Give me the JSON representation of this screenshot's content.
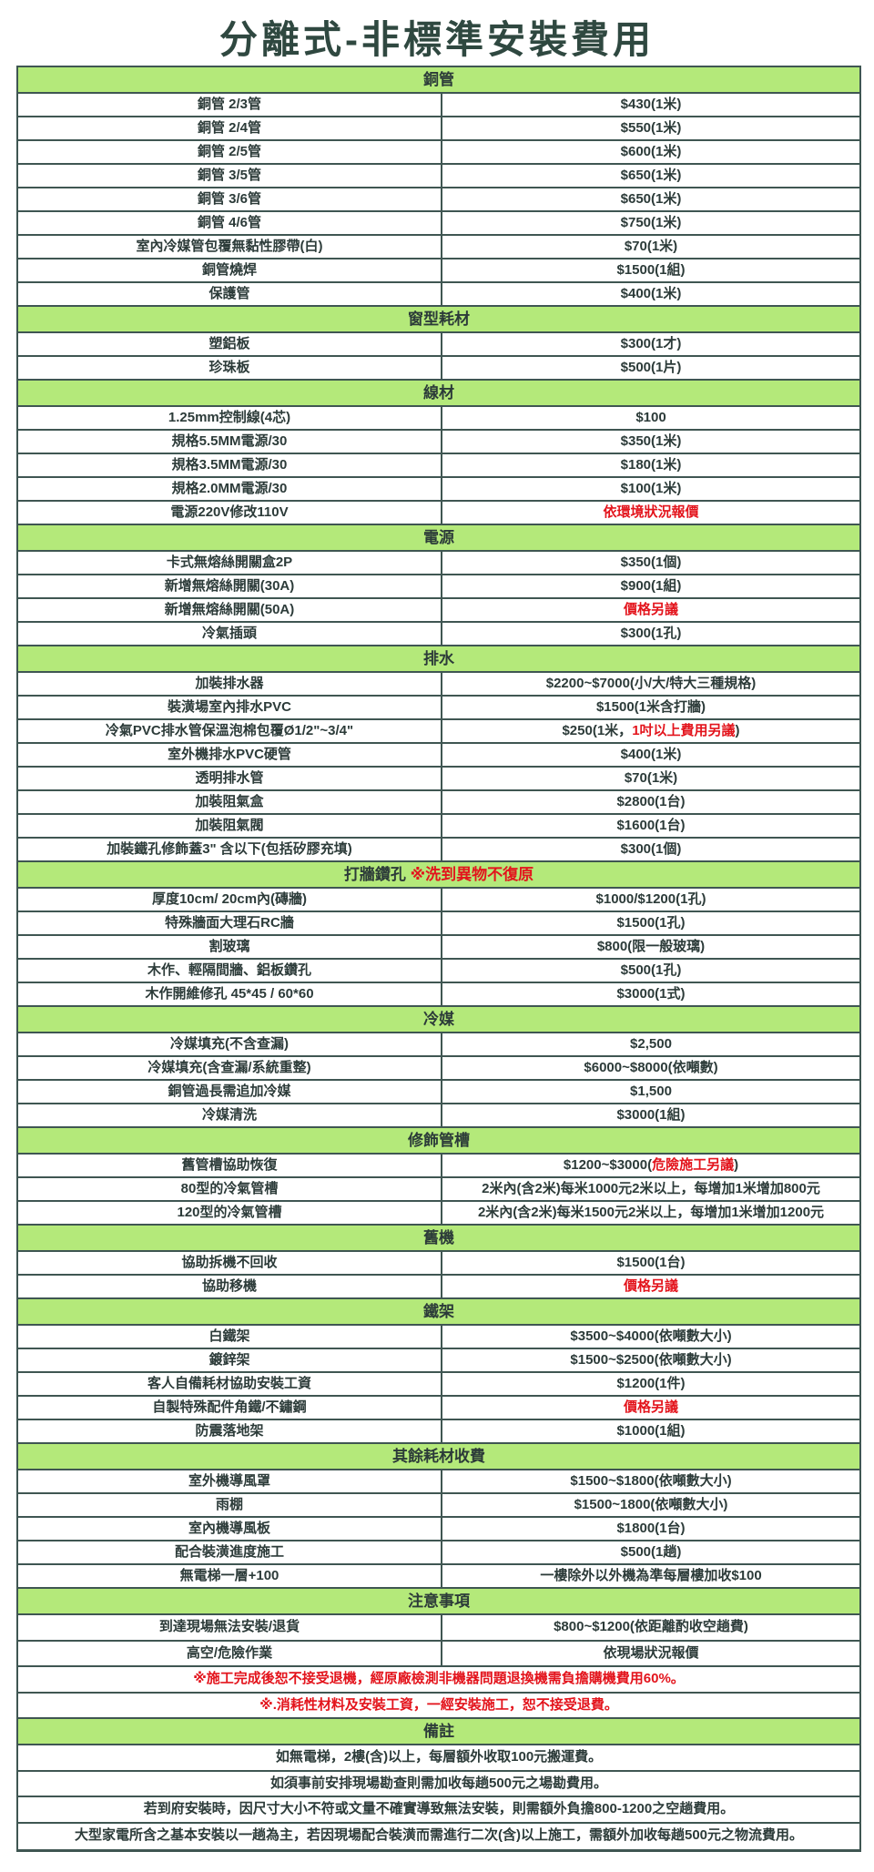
{
  "title": "分離式-非標準安裝費用",
  "colors": {
    "header_bg": "#b4e97a",
    "border": "#3f5652",
    "text": "#2c3b39",
    "highlight_red": "#e3141c"
  },
  "sections": [
    {
      "title": "銅管",
      "rows": [
        {
          "item": "銅管 2/3管",
          "price": [
            {
              "text": "$430(1米)"
            }
          ]
        },
        {
          "item": "銅管 2/4管",
          "price": [
            {
              "text": "$550(1米)"
            }
          ]
        },
        {
          "item": "銅管 2/5管",
          "price": [
            {
              "text": "$600(1米)"
            }
          ]
        },
        {
          "item": "銅管 3/5管",
          "price": [
            {
              "text": "$650(1米)"
            }
          ]
        },
        {
          "item": "銅管 3/6管",
          "price": [
            {
              "text": "$650(1米)"
            }
          ]
        },
        {
          "item": "銅管 4/6管",
          "price": [
            {
              "text": "$750(1米)"
            }
          ]
        },
        {
          "item": "室內冷媒管包覆無黏性膠帶(白)",
          "price": [
            {
              "text": "$70(1米)"
            }
          ]
        },
        {
          "item": "銅管燒焊",
          "price": [
            {
              "text": "$1500(1組)"
            }
          ]
        },
        {
          "item": "保護管",
          "price": [
            {
              "text": "$400(1米)"
            }
          ]
        }
      ]
    },
    {
      "title": "窗型耗材",
      "rows": [
        {
          "item": "塑鋁板",
          "price": [
            {
              "text": "$300(1才)"
            }
          ]
        },
        {
          "item": "珍珠板",
          "price": [
            {
              "text": "$500(1片)"
            }
          ]
        }
      ]
    },
    {
      "title": "線材",
      "rows": [
        {
          "item": "1.25mm控制線(4芯)",
          "price": [
            {
              "text": "$100"
            }
          ]
        },
        {
          "item": "規格5.5MM電源/30",
          "price": [
            {
              "text": "$350(1米)"
            }
          ]
        },
        {
          "item": "規格3.5MM電源/30",
          "price": [
            {
              "text": "$180(1米)"
            }
          ]
        },
        {
          "item": "規格2.0MM電源/30",
          "price": [
            {
              "text": "$100(1米)"
            }
          ]
        },
        {
          "item": "電源220V修改110V",
          "price": [
            {
              "text": "依環境狀況報價",
              "red": true
            }
          ]
        }
      ]
    },
    {
      "title": "電源",
      "rows": [
        {
          "item": "卡式無熔絲開關盒2P",
          "price": [
            {
              "text": "$350(1個)"
            }
          ]
        },
        {
          "item": "新增無熔絲開關(30A)",
          "price": [
            {
              "text": "$900(1組)"
            }
          ]
        },
        {
          "item": "新增無熔絲開關(50A)",
          "price": [
            {
              "text": "價格另議",
              "red": true
            }
          ]
        },
        {
          "item": "冷氣插頭",
          "price": [
            {
              "text": "$300(1孔)"
            }
          ]
        }
      ]
    },
    {
      "title": "排水",
      "rows": [
        {
          "item": "加裝排水器",
          "price": [
            {
              "text": "$2200~$7000(小/大/特大三種規格)"
            }
          ]
        },
        {
          "item": "裝潢場室內排水PVC",
          "price": [
            {
              "text": "$1500(1米含打牆)"
            }
          ]
        },
        {
          "item": "冷氣PVC排水管保溫泡棉包覆Ø1/2\"~3/4\"",
          "price": [
            {
              "text": "$250(1米，"
            },
            {
              "text": "1吋以上費用另議",
              "red": true
            },
            {
              "text": ")"
            }
          ]
        },
        {
          "item": "室外機排水PVC硬管",
          "price": [
            {
              "text": "$400(1米)"
            }
          ]
        },
        {
          "item": "透明排水管",
          "price": [
            {
              "text": "$70(1米)"
            }
          ]
        },
        {
          "item": "加裝阻氣盒",
          "price": [
            {
              "text": "$2800(1台)"
            }
          ]
        },
        {
          "item": "加裝阻氣閥",
          "price": [
            {
              "text": "$1600(1台)"
            }
          ]
        },
        {
          "item": "加裝鐵孔修飾蓋3\" 含以下(包括矽膠充填)",
          "price": [
            {
              "text": "$300(1個)"
            }
          ]
        }
      ]
    },
    {
      "title": "打牆鑽孔",
      "title_note": "※洗到異物不復原",
      "rows": [
        {
          "item": "厚度10cm/ 20cm內(磚牆)",
          "price": [
            {
              "text": "$1000/$1200(1孔)"
            }
          ]
        },
        {
          "item": "特殊牆面大理石RC牆",
          "price": [
            {
              "text": "$1500(1孔)"
            }
          ]
        },
        {
          "item": "割玻璃",
          "price": [
            {
              "text": "$800(限一般玻璃)"
            }
          ]
        },
        {
          "item": "木作、輕隔間牆、鋁板鑽孔",
          "price": [
            {
              "text": "$500(1孔)"
            }
          ]
        },
        {
          "item": "木作開維修孔 45*45 / 60*60",
          "price": [
            {
              "text": "$3000(1式)"
            }
          ]
        }
      ]
    },
    {
      "title": "冷媒",
      "rows": [
        {
          "item": "冷媒填充(不含查漏)",
          "price": [
            {
              "text": "$2,500"
            }
          ]
        },
        {
          "item": "冷媒填充(含查漏/系統重整)",
          "price": [
            {
              "text": "$6000~$8000(依噸數)"
            }
          ]
        },
        {
          "item": "銅管過長需追加冷媒",
          "price": [
            {
              "text": "$1,500"
            }
          ]
        },
        {
          "item": "冷媒清洗",
          "price": [
            {
              "text": "$3000(1組)"
            }
          ]
        }
      ]
    },
    {
      "title": "修飾管槽",
      "rows": [
        {
          "item": "舊管槽協助恢復",
          "price": [
            {
              "text": "$1200~$3000("
            },
            {
              "text": "危險施工另議",
              "red": true
            },
            {
              "text": ")"
            }
          ]
        },
        {
          "item": "80型的冷氣管槽",
          "price": [
            {
              "text": "2米內(含2米)每米1000元2米以上，每增加1米增加800元"
            }
          ]
        },
        {
          "item": "120型的冷氣管槽",
          "price": [
            {
              "text": "2米內(含2米)每米1500元2米以上，每增加1米增加1200元"
            }
          ]
        }
      ]
    },
    {
      "title": "舊機",
      "rows": [
        {
          "item": "協助拆機不回收",
          "price": [
            {
              "text": "$1500(1台)"
            }
          ]
        },
        {
          "item": "協助移機",
          "price": [
            {
              "text": "價格另議",
              "red": true
            }
          ]
        }
      ]
    },
    {
      "title": "鐵架",
      "rows": [
        {
          "item": "白鐵架",
          "price": [
            {
              "text": "$3500~$4000(依噸數大小)"
            }
          ]
        },
        {
          "item": "鍍鋅架",
          "price": [
            {
              "text": "$1500~$2500(依噸數大小)"
            }
          ]
        },
        {
          "item": "客人自備耗材協助安裝工資",
          "price": [
            {
              "text": "$1200(1件)"
            }
          ]
        },
        {
          "item": "自製特殊配件角鐵/不鏽鋼",
          "price": [
            {
              "text": "價格另議",
              "red": true
            }
          ]
        },
        {
          "item": "防震落地架",
          "price": [
            {
              "text": "$1000(1組)"
            }
          ]
        }
      ]
    },
    {
      "title": "其餘耗材收費",
      "rows": [
        {
          "item": "室外機導風罩",
          "price": [
            {
              "text": "$1500~$1800(依噸數大小)"
            }
          ]
        },
        {
          "item": "雨棚",
          "price": [
            {
              "text": "$1500~1800(依噸數大小)"
            }
          ]
        },
        {
          "item": "室內機導風板",
          "price": [
            {
              "text": "$1800(1台)"
            }
          ]
        },
        {
          "item": "配合裝潢進度施工",
          "price": [
            {
              "text": "$500(1趟)"
            }
          ]
        },
        {
          "item": "無電梯一層+100",
          "price": [
            {
              "text": "一樓除外以外機為準每層樓加收$100"
            }
          ]
        }
      ]
    },
    {
      "title": "注意事項",
      "tall": true,
      "rows": [
        {
          "item": "到達現場無法安裝/退貨",
          "price": [
            {
              "text": "$800~$1200(依距離酌收空趟費)"
            }
          ]
        },
        {
          "item": "高空/危險作業",
          "price": [
            {
              "text": "依現場狀況報價"
            }
          ]
        },
        {
          "note": "※施工完成後恕不接受退機，經原廠檢測非機器問題退換機需負擔購機費用60%。",
          "red": true
        },
        {
          "note": "※.消耗性材料及安裝工資，一經安裝施工，恕不接受退費。",
          "red": true
        }
      ]
    },
    {
      "title": "備註",
      "tall": true,
      "rows": [
        {
          "note": "如無電梯，2樓(含)以上，每層額外收取100元搬運費。"
        },
        {
          "note": "如須事前安排現場勘查則需加收每趟500元之場勘費用。"
        },
        {
          "note": "若到府安裝時，因尺寸大小不符或文量不確實導致無法安裝，則需額外負擔800-1200之空趟費用。"
        },
        {
          "note": "大型家電所含之基本安裝以一趟為主，若因現場配合裝潢而需進行二次(含)以上施工，需額外加收每趟500元之物流費用。"
        }
      ]
    }
  ]
}
